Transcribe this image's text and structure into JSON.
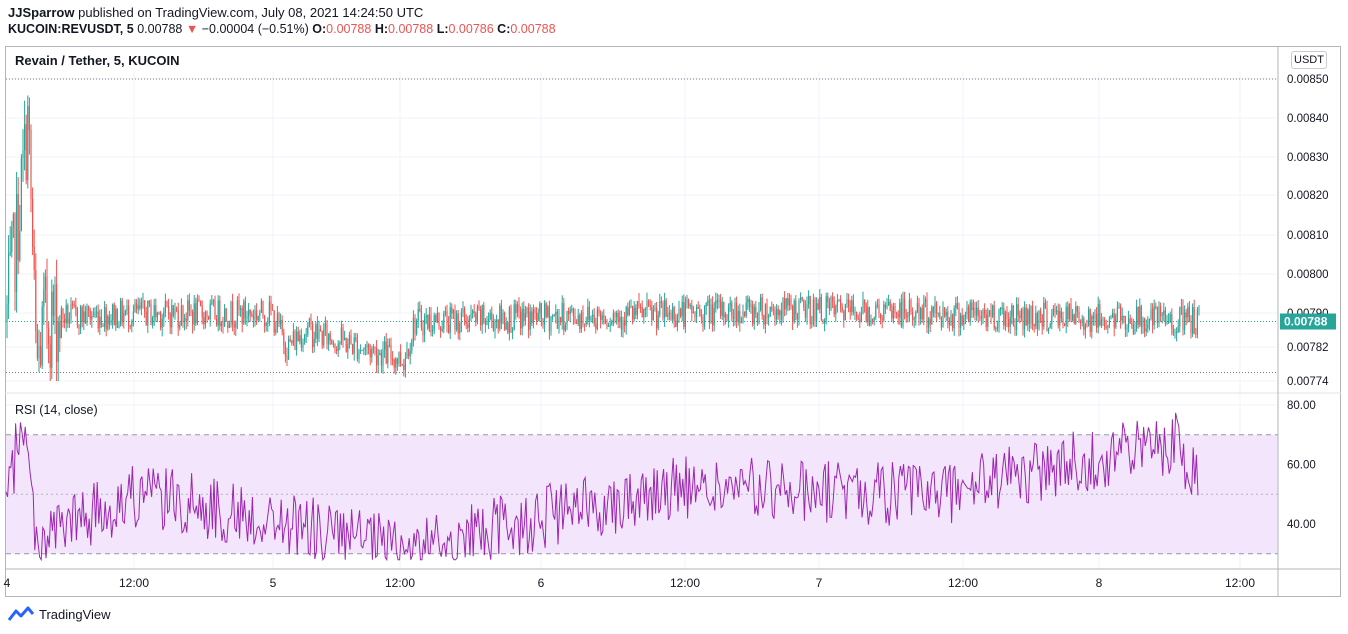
{
  "header": {
    "author": "JJSparrow",
    "published_text": "published on TradingView.com, July 08, 2021 14:24:50 UTC"
  },
  "ohlc": {
    "symbol": "KUCOIN:REVUSDT, 5",
    "last": "0.00788",
    "change_arrow": "▼",
    "change": "−0.00004 (−0.51%)",
    "o_label": "O:",
    "o_value": "0.00788",
    "h_label": "H:",
    "h_value": "0.00788",
    "l_label": "L:",
    "l_value": "0.00786",
    "c_label": "C:",
    "c_value": "0.00788"
  },
  "main_pane": {
    "title": "Revain / Tether, 5, KUCOIN",
    "currency_button": "USDT",
    "price_ticks": [
      "0.00850",
      "0.00840",
      "0.00830",
      "0.00820",
      "0.00810",
      "0.00800",
      "0.00790",
      "0.00782",
      "0.00774"
    ],
    "last_price_label": "0.00788"
  },
  "rsi_pane": {
    "title": "RSI (14, close)",
    "ticks": [
      "80.00",
      "60.00",
      "40.00"
    ]
  },
  "time_axis": {
    "labels": [
      "4",
      "12:00",
      "5",
      "12:00",
      "6",
      "12:00",
      "7",
      "12:00",
      "8",
      "12:00"
    ]
  },
  "footer": {
    "brand": "TradingView"
  },
  "colors": {
    "up": "#26a69a",
    "down": "#ef5350",
    "rsi_line": "#9c27b0",
    "rsi_band": "#f3e5fb",
    "grid": "#f0f3fa"
  },
  "chart_data": {
    "type": "candlestick",
    "title": "Revain / Tether, 5, KUCOIN",
    "x_range": [
      "2021-07-04",
      "2021-07-08 12:30"
    ],
    "interval": "5m",
    "y_range": [
      0.00774,
      0.00851
    ],
    "price_ticks": [
      0.0085,
      0.0084,
      0.0083,
      0.0082,
      0.0081,
      0.008,
      0.0079,
      0.00782,
      0.00774
    ],
    "last_close": 0.00788,
    "high_line": 0.0085,
    "low_line": 0.00776,
    "profile": [
      {
        "t": "4 00:00",
        "close": 0.00788
      },
      {
        "t": "4 01:00",
        "close": 0.00811
      },
      {
        "t": "4 02:00",
        "close": 0.0084
      },
      {
        "t": "4 02:45",
        "close": 0.00776
      },
      {
        "t": "4 03:30",
        "close": 0.00789
      },
      {
        "t": "4 12:00",
        "close": 0.0079
      },
      {
        "t": "5 00:00",
        "close": 0.0079
      },
      {
        "t": "5 01:30",
        "close": 0.00782
      },
      {
        "t": "5 03:00",
        "close": 0.00786
      },
      {
        "t": "5 12:00",
        "close": 0.00779
      },
      {
        "t": "5 13:00",
        "close": 0.00788
      },
      {
        "t": "6 00:00",
        "close": 0.00789
      },
      {
        "t": "6 12:00",
        "close": 0.0079
      },
      {
        "t": "7 00:00",
        "close": 0.00791
      },
      {
        "t": "7 12:00",
        "close": 0.0079
      },
      {
        "t": "8 00:00",
        "close": 0.00789
      },
      {
        "t": "8 12:00",
        "close": 0.00788
      }
    ],
    "rsi": {
      "name": "RSI (14, close)",
      "period": 14,
      "y_ticks": [
        80,
        60,
        40
      ],
      "band": [
        30,
        70
      ],
      "mid": 50,
      "profile": [
        {
          "t": "4 00:00",
          "value": 45
        },
        {
          "t": "4 01:30",
          "value": 77
        },
        {
          "t": "4 02:45",
          "value": 35
        },
        {
          "t": "4 12:00",
          "value": 50
        },
        {
          "t": "5 01:30",
          "value": 40
        },
        {
          "t": "5 12:00",
          "value": 31
        },
        {
          "t": "6 12:00",
          "value": 52
        },
        {
          "t": "7 12:00",
          "value": 50
        },
        {
          "t": "8 10:00",
          "value": 68
        },
        {
          "t": "8 12:30",
          "value": 49
        }
      ]
    }
  }
}
